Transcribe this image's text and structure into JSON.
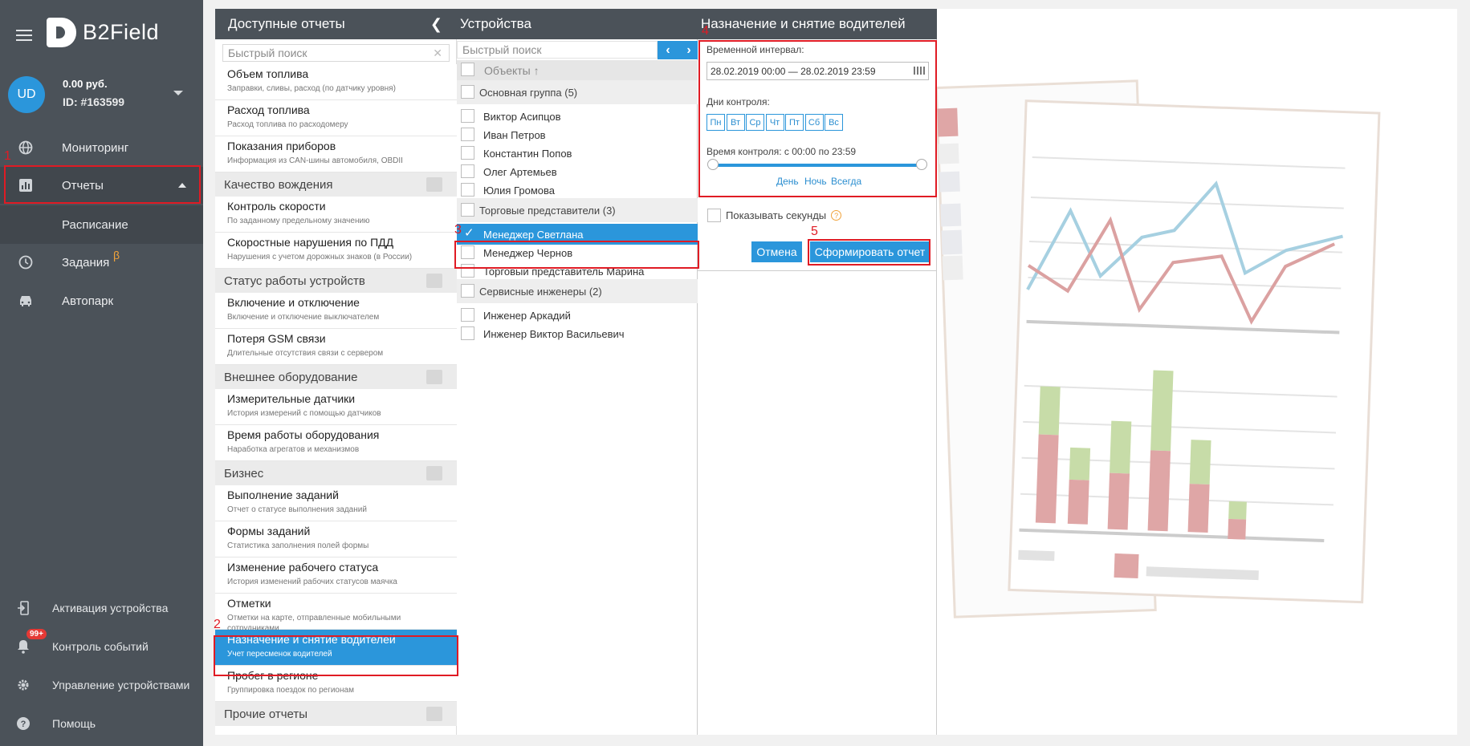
{
  "sidebar": {
    "logo_text": "B2Field",
    "account": {
      "initials": "UD",
      "balance": "0.00 руб.",
      "id": "ID: #163599"
    },
    "nav": {
      "monitoring": "Мониторинг",
      "reports": "Отчеты",
      "schedule": "Расписание",
      "tasks": "Задания",
      "tasks_badge": "β",
      "fleet": "Автопарк"
    },
    "bottom": {
      "activation": "Активация устройства",
      "events": "Контроль событий",
      "events_badge": "99+",
      "devices": "Управление устройствами",
      "help": "Помощь"
    }
  },
  "annotations": [
    "1",
    "2",
    "3",
    "4",
    "5"
  ],
  "reports_panel": {
    "title": "Доступные отчеты",
    "search_placeholder": "Быстрый поиск",
    "items": [
      {
        "title": "Объем топлива",
        "sub": "Заправки, сливы, расход (по датчику уровня)"
      },
      {
        "title": "Расход топлива",
        "sub": "Расход топлива по расходомеру"
      },
      {
        "title": "Показания приборов",
        "sub": "Информация из CAN-шины автомобиля, OBDII"
      },
      {
        "category": "Качество вождения"
      },
      {
        "title": "Контроль скорости",
        "sub": "По заданному предельному значению"
      },
      {
        "title": "Скоростные нарушения по ПДД",
        "sub": "Нарушения с учетом дорожных знаков (в России)"
      },
      {
        "category": "Статус работы устройств"
      },
      {
        "title": "Включение и отключение",
        "sub": "Включение и отключение выключателем"
      },
      {
        "title": "Потеря GSM связи",
        "sub": "Длительные отсутствия связи с сервером"
      },
      {
        "category": "Внешнее оборудование"
      },
      {
        "title": "Измерительные датчики",
        "sub": "История измерений с помощью датчиков"
      },
      {
        "title": "Время работы оборудования",
        "sub": "Наработка агрегатов и механизмов"
      },
      {
        "category": "Бизнес"
      },
      {
        "title": "Выполнение заданий",
        "sub": "Отчет о статусе выполнения заданий"
      },
      {
        "title": "Формы заданий",
        "sub": "Статистика заполнения полей формы"
      },
      {
        "title": "Изменение рабочего статуса",
        "sub": "История изменений рабочих статусов маячка"
      },
      {
        "title": "Отметки",
        "sub": "Отметки на карте, отправленные мобильными сотрудниками"
      },
      {
        "title": "Назначение и снятие водителей",
        "sub": "Учет пересменок водителей",
        "selected": true
      },
      {
        "title": "Пробег в регионе",
        "sub": "Группировка поездок по регионам"
      },
      {
        "category": "Прочие отчеты"
      }
    ]
  },
  "devices_panel": {
    "title": "Устройства",
    "search_placeholder": "Быстрый поиск",
    "column_header": "Объекты ↑",
    "rows": [
      {
        "group": "Основная группа (5)"
      },
      {
        "name": "Виктор Асипцов"
      },
      {
        "name": "Иван Петров"
      },
      {
        "name": "Константин Попов"
      },
      {
        "name": "Олег Артемьев"
      },
      {
        "name": "Юлия Громова"
      },
      {
        "group": "Торговые представители (3)"
      },
      {
        "name": "Менеджер Светлана",
        "selected": true
      },
      {
        "name": "Менеджер Чернов"
      },
      {
        "name": "Торговый представитель Марина"
      },
      {
        "group": "Сервисные инженеры (2)"
      },
      {
        "name": "Инженер Аркадий"
      },
      {
        "name": "Инженер Виктор Васильевич"
      }
    ]
  },
  "assign_panel": {
    "title": "Назначение и снятие водителей",
    "interval_label": "Временной интервал:",
    "interval_value": "28.02.2019 00:00 — 28.02.2019 23:59",
    "days_label": "Дни контроля:",
    "days": [
      "Пн",
      "Вт",
      "Ср",
      "Чт",
      "Пт",
      "Сб",
      "Вс"
    ],
    "time_label": "Время контроля: с 00:00 по 23:59",
    "time_range": {
      "from": 0,
      "to": 1
    },
    "quick": [
      "День",
      "Ночь",
      "Всегда"
    ],
    "show_seconds": "Показывать секунды",
    "help_mark": "?",
    "cancel": "Отмена",
    "submit": "Сформировать отчет"
  },
  "icons": {
    "back": "chevron-left-icon",
    "prev": "chevron-left-icon",
    "next": "chevron-right-icon"
  },
  "colors": {
    "accent": "#2b96db",
    "sidebar": "#4b5259",
    "annotation": "#e01b24",
    "beta": "#f0a23a"
  }
}
